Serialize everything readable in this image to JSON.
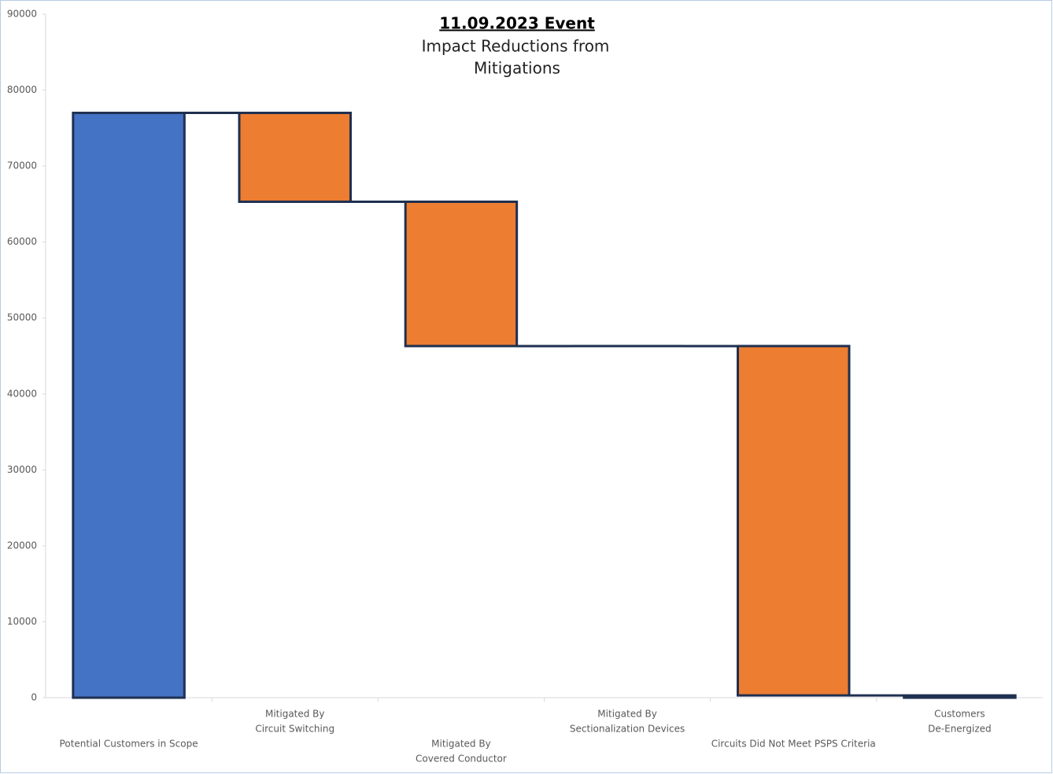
{
  "chart_data": {
    "type": "waterfall",
    "title": "11.09.2023 Event",
    "subtitle": [
      "Impact Reductions from",
      "Mitigations"
    ],
    "categories": [
      [
        "Potential Customers in Scope"
      ],
      [
        "Mitigated By",
        "Circuit Switching"
      ],
      [
        "Mitigated By",
        "Covered Conductor"
      ],
      [
        "Mitigated By",
        "Sectionalization Devices"
      ],
      [
        "Circuits Did Not Meet PSPS Criteria"
      ],
      [
        "Customers",
        "De-Energized"
      ]
    ],
    "measure": [
      "absolute",
      "relative",
      "relative",
      "relative",
      "relative",
      "total"
    ],
    "values": [
      77000,
      -11700,
      -19000,
      0,
      -46000,
      300
    ],
    "total_color": "#4472c4",
    "change_color": "#ed7d31",
    "edge_color": "#1f3050",
    "ylim": [
      0,
      90000
    ],
    "yticks": [
      0,
      10000,
      20000,
      30000,
      40000,
      50000,
      60000,
      70000,
      80000,
      90000
    ]
  }
}
